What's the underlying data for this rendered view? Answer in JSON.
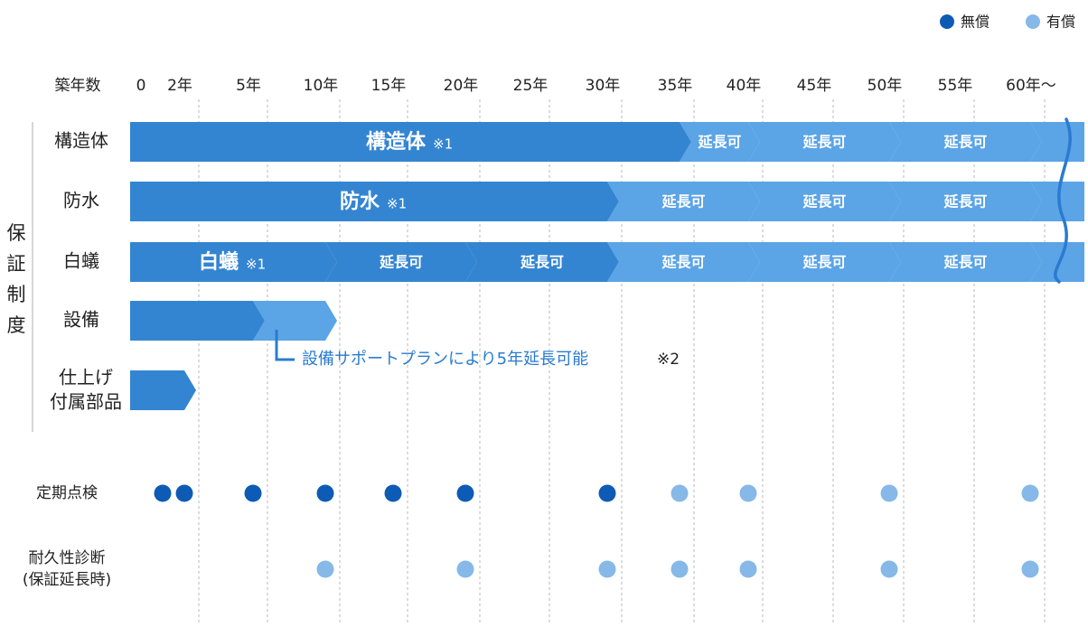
{
  "legend": {
    "free": {
      "label": "無償",
      "color": "#0d5bb5"
    },
    "paid": {
      "label": "有償",
      "color": "#86b8e8"
    }
  },
  "axis": {
    "title": "築年数",
    "ticks": [
      {
        "year": 0,
        "label": "0"
      },
      {
        "year": 2,
        "label": "2年"
      },
      {
        "year": 5,
        "label": "5年"
      },
      {
        "year": 10,
        "label": "10年"
      },
      {
        "year": 15,
        "label": "15年"
      },
      {
        "year": 20,
        "label": "20年"
      },
      {
        "year": 25,
        "label": "25年"
      },
      {
        "year": 30,
        "label": "30年"
      },
      {
        "year": 35,
        "label": "35年"
      },
      {
        "year": 40,
        "label": "40年"
      },
      {
        "year": 45,
        "label": "45年"
      },
      {
        "year": 50,
        "label": "50年"
      },
      {
        "year": 55,
        "label": "55年"
      },
      {
        "year": 60,
        "label": "60年〜"
      }
    ]
  },
  "colors": {
    "base": "#3485d1",
    "extension": "#5ba4e6",
    "text_blue": "#2a7bd0"
  },
  "group_label": "保証制度",
  "guarantee_rows": [
    {
      "id": "structure",
      "label": [
        "構造体"
      ],
      "segments": [
        {
          "type": "base",
          "start": 0,
          "end": 35,
          "label": "構造体",
          "note": "※1"
        },
        {
          "type": "ext",
          "start": 35,
          "end": 40,
          "label": "延長可"
        },
        {
          "type": "ext",
          "start": 40,
          "end": 50,
          "label": "延長可"
        },
        {
          "type": "ext",
          "start": 50,
          "end": 60,
          "label": "延長可"
        },
        {
          "type": "ext",
          "start": 60,
          "end": 63,
          "label": ""
        }
      ]
    },
    {
      "id": "waterproof",
      "label": [
        "防水"
      ],
      "segments": [
        {
          "type": "base",
          "start": 0,
          "end": 30,
          "label": "防水",
          "note": "※1"
        },
        {
          "type": "ext",
          "start": 30,
          "end": 40,
          "label": "延長可"
        },
        {
          "type": "ext",
          "start": 40,
          "end": 50,
          "label": "延長可"
        },
        {
          "type": "ext",
          "start": 50,
          "end": 60,
          "label": "延長可"
        },
        {
          "type": "ext",
          "start": 60,
          "end": 63,
          "label": ""
        }
      ]
    },
    {
      "id": "termite",
      "label": [
        "白蟻"
      ],
      "segments": [
        {
          "type": "base",
          "start": 0,
          "end": 10,
          "label": "白蟻",
          "note": "※1"
        },
        {
          "type": "base",
          "start": 10,
          "end": 20,
          "label": "延長可"
        },
        {
          "type": "base",
          "start": 20,
          "end": 30,
          "label": "延長可"
        },
        {
          "type": "ext",
          "start": 30,
          "end": 40,
          "label": "延長可"
        },
        {
          "type": "ext",
          "start": 40,
          "end": 50,
          "label": "延長可"
        },
        {
          "type": "ext",
          "start": 50,
          "end": 60,
          "label": "延長可"
        },
        {
          "type": "ext",
          "start": 60,
          "end": 63,
          "label": ""
        }
      ]
    },
    {
      "id": "equipment",
      "label": [
        "設備"
      ],
      "segments": [
        {
          "type": "base",
          "start": 0,
          "end": 5,
          "label": ""
        },
        {
          "type": "ext",
          "start": 5,
          "end": 10,
          "label": ""
        }
      ]
    },
    {
      "id": "finishing",
      "label": [
        "仕上げ",
        "付属部品"
      ],
      "segments": [
        {
          "type": "base",
          "start": 0,
          "end": 2,
          "label": ""
        }
      ]
    }
  ],
  "equipment_callout": {
    "text": "設備サポートプランにより5年延長可能",
    "note": "※2"
  },
  "inspection_rows": [
    {
      "id": "periodic",
      "label": [
        "定期点検"
      ],
      "points": [
        {
          "year": 0,
          "kind": "free"
        },
        {
          "year": 2,
          "kind": "free"
        },
        {
          "year": 5,
          "kind": "free"
        },
        {
          "year": 10,
          "kind": "free"
        },
        {
          "year": 15,
          "kind": "free"
        },
        {
          "year": 20,
          "kind": "free"
        },
        {
          "year": 30,
          "kind": "free"
        },
        {
          "year": 35,
          "kind": "paid"
        },
        {
          "year": 40,
          "kind": "paid"
        },
        {
          "year": 50,
          "kind": "paid"
        },
        {
          "year": 60,
          "kind": "paid"
        }
      ]
    },
    {
      "id": "durability",
      "label": [
        "耐久性診断",
        "(保証延長時)"
      ],
      "points": [
        {
          "year": 10,
          "kind": "paid"
        },
        {
          "year": 20,
          "kind": "paid"
        },
        {
          "year": 30,
          "kind": "paid"
        },
        {
          "year": 35,
          "kind": "paid"
        },
        {
          "year": 40,
          "kind": "paid"
        },
        {
          "year": 50,
          "kind": "paid"
        },
        {
          "year": 60,
          "kind": "paid"
        }
      ]
    }
  ]
}
